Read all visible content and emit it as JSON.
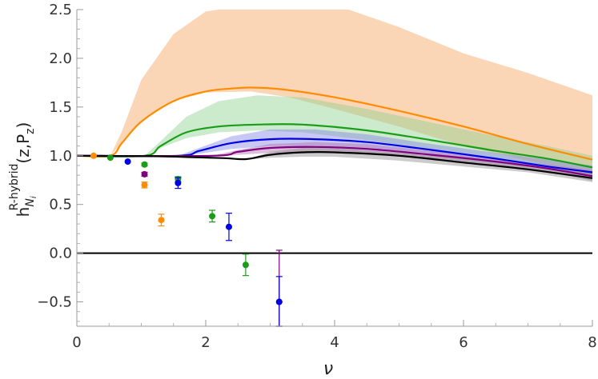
{
  "chart_data": {
    "type": "line",
    "title": "",
    "xlabel": "ν",
    "ylabel": {
      "base": "h",
      "superscript": "R-hybrid",
      "subscript_main": "N",
      "subscript_sub": "i",
      "args": "(z,P",
      "args_sub": "z",
      "args_close": ")"
    },
    "xlim": [
      0,
      8
    ],
    "ylim": [
      -0.75,
      2.5
    ],
    "x_ticks": [
      0,
      2,
      4,
      6,
      8
    ],
    "x_tick_labels": [
      "0",
      "2",
      "4",
      "6",
      "8"
    ],
    "y_ticks": [
      -0.5,
      0.0,
      0.5,
      1.0,
      1.5,
      2.0,
      2.5
    ],
    "y_tick_labels": [
      "-0.5",
      "0.0",
      "0.5",
      "1.0",
      "1.5",
      "2.0",
      "2.5"
    ],
    "grid": false,
    "reference_line_y": 0,
    "bands": [
      {
        "color": "#f4a460",
        "points": [
          {
            "x": 0.52,
            "lo": 1.0,
            "hi": 1.0
          },
          {
            "x": 0.7,
            "lo": 1.13,
            "hi": 1.25
          },
          {
            "x": 1.0,
            "lo": 1.35,
            "hi": 1.78
          },
          {
            "x": 1.5,
            "lo": 1.56,
            "hi": 2.25
          },
          {
            "x": 2.0,
            "lo": 1.65,
            "hi": 2.48
          },
          {
            "x": 2.7,
            "lo": 1.66,
            "hi": 2.55
          },
          {
            "x": 3.3,
            "lo": 1.6,
            "hi": 2.55
          },
          {
            "x": 4.0,
            "lo": 1.48,
            "hi": 2.55
          },
          {
            "x": 5.0,
            "lo": 1.3,
            "hi": 2.32
          },
          {
            "x": 6.0,
            "lo": 1.1,
            "hi": 2.05
          },
          {
            "x": 7.0,
            "lo": 0.95,
            "hi": 1.85
          },
          {
            "x": 8.0,
            "lo": 0.8,
            "hi": 1.62
          }
        ]
      },
      {
        "color": "#8fd18f",
        "points": [
          {
            "x": 1.05,
            "lo": 1.0,
            "hi": 1.0
          },
          {
            "x": 1.3,
            "lo": 1.08,
            "hi": 1.15
          },
          {
            "x": 1.7,
            "lo": 1.18,
            "hi": 1.4
          },
          {
            "x": 2.2,
            "lo": 1.24,
            "hi": 1.56
          },
          {
            "x": 2.8,
            "lo": 1.26,
            "hi": 1.62
          },
          {
            "x": 3.5,
            "lo": 1.24,
            "hi": 1.6
          },
          {
            "x": 4.5,
            "lo": 1.16,
            "hi": 1.48
          },
          {
            "x": 5.5,
            "lo": 1.06,
            "hi": 1.34
          },
          {
            "x": 6.5,
            "lo": 0.96,
            "hi": 1.2
          },
          {
            "x": 7.3,
            "lo": 0.9,
            "hi": 1.1
          },
          {
            "x": 8.0,
            "lo": 0.82,
            "hi": 1.0
          }
        ]
      },
      {
        "color": "#8585e6",
        "points": [
          {
            "x": 1.57,
            "lo": 1.0,
            "hi": 1.0
          },
          {
            "x": 1.9,
            "lo": 1.02,
            "hi": 1.08
          },
          {
            "x": 2.4,
            "lo": 1.07,
            "hi": 1.2
          },
          {
            "x": 3.0,
            "lo": 1.1,
            "hi": 1.27
          },
          {
            "x": 3.7,
            "lo": 1.1,
            "hi": 1.27
          },
          {
            "x": 4.5,
            "lo": 1.07,
            "hi": 1.22
          },
          {
            "x": 5.5,
            "lo": 1.0,
            "hi": 1.12
          },
          {
            "x": 6.5,
            "lo": 0.93,
            "hi": 1.03
          },
          {
            "x": 7.3,
            "lo": 0.87,
            "hi": 0.96
          },
          {
            "x": 8.0,
            "lo": 0.78,
            "hi": 0.9
          }
        ]
      },
      {
        "color": "#b070b0",
        "points": [
          {
            "x": 2.1,
            "lo": 1.0,
            "hi": 1.0
          },
          {
            "x": 2.5,
            "lo": 1.01,
            "hi": 1.06
          },
          {
            "x": 3.0,
            "lo": 1.03,
            "hi": 1.12
          },
          {
            "x": 3.7,
            "lo": 1.04,
            "hi": 1.14
          },
          {
            "x": 4.5,
            "lo": 1.02,
            "hi": 1.12
          },
          {
            "x": 5.5,
            "lo": 0.96,
            "hi": 1.05
          },
          {
            "x": 6.5,
            "lo": 0.9,
            "hi": 0.97
          },
          {
            "x": 7.3,
            "lo": 0.84,
            "hi": 0.91
          },
          {
            "x": 8.0,
            "lo": 0.74,
            "hi": 0.85
          }
        ]
      },
      {
        "color": "#8c8c8c",
        "points": [
          {
            "x": 2.63,
            "lo": 0.96,
            "hi": 0.96
          },
          {
            "x": 3.0,
            "lo": 0.98,
            "hi": 1.04
          },
          {
            "x": 3.5,
            "lo": 0.99,
            "hi": 1.08
          },
          {
            "x": 4.0,
            "lo": 0.99,
            "hi": 1.08
          },
          {
            "x": 5.0,
            "lo": 0.95,
            "hi": 1.03
          },
          {
            "x": 6.0,
            "lo": 0.89,
            "hi": 0.97
          },
          {
            "x": 7.0,
            "lo": 0.83,
            "hi": 0.9
          },
          {
            "x": 8.0,
            "lo": 0.73,
            "hi": 0.82
          }
        ]
      }
    ],
    "series": [
      {
        "color": "#ff8c00",
        "x": [
          0,
          0.52,
          0.7,
          1.0,
          1.5,
          2.0,
          2.4,
          2.7,
          3.2,
          4.0,
          5.0,
          6.0,
          7.0,
          8.0
        ],
        "y": [
          1.0,
          1.0,
          1.13,
          1.35,
          1.56,
          1.66,
          1.69,
          1.7,
          1.68,
          1.6,
          1.46,
          1.3,
          1.12,
          0.96
        ]
      },
      {
        "color": "#1a9e1a",
        "x": [
          0,
          1.05,
          1.3,
          1.7,
          2.2,
          2.8,
          3.5,
          4.5,
          5.5,
          6.5,
          7.3,
          8.0
        ],
        "y": [
          1.0,
          1.0,
          1.1,
          1.24,
          1.3,
          1.32,
          1.32,
          1.26,
          1.16,
          1.05,
          0.97,
          0.88
        ]
      },
      {
        "color": "#0000e6",
        "x": [
          0,
          1.57,
          1.9,
          2.4,
          3.0,
          3.7,
          4.5,
          5.5,
          6.5,
          7.3,
          8.0
        ],
        "y": [
          1.0,
          1.0,
          1.05,
          1.13,
          1.17,
          1.17,
          1.14,
          1.06,
          0.97,
          0.89,
          0.83
        ]
      },
      {
        "color": "#800080",
        "x": [
          0,
          2.1,
          2.5,
          3.0,
          3.7,
          4.5,
          5.5,
          6.5,
          7.3,
          8.0
        ],
        "y": [
          1.0,
          1.0,
          1.04,
          1.08,
          1.09,
          1.07,
          1.01,
          0.94,
          0.87,
          0.79
        ]
      },
      {
        "color": "#000000",
        "x": [
          0,
          1.2,
          1.8,
          2.3,
          2.63,
          3.0,
          3.5,
          4.0,
          5.0,
          6.0,
          7.0,
          8.0
        ],
        "y": [
          1.0,
          0.995,
          0.985,
          0.975,
          0.965,
          1.01,
          1.035,
          1.035,
          1.0,
          0.93,
          0.86,
          0.77
        ]
      }
    ],
    "points": [
      {
        "x": 0.26,
        "y": 1.0,
        "err": 0.01,
        "color": "#ff8c00"
      },
      {
        "x": 0.52,
        "y": 0.98,
        "err": 0.01,
        "color": "#1a9e1a"
      },
      {
        "x": 0.79,
        "y": 0.94,
        "err": 0.01,
        "color": "#0000e6"
      },
      {
        "x": 1.05,
        "y": 0.91,
        "err": 0.015,
        "color": "#1a9e1a"
      },
      {
        "x": 1.05,
        "y": 0.81,
        "err": 0.02,
        "color": "#800080"
      },
      {
        "x": 1.05,
        "y": 0.7,
        "err": 0.03,
        "color": "#ff8c00"
      },
      {
        "x": 1.31,
        "y": 0.34,
        "err": 0.06,
        "color": "#ff8c00"
      },
      {
        "x": 1.57,
        "y": 0.76,
        "err": 0.025,
        "color": "#1a9e1a"
      },
      {
        "x": 1.57,
        "y": 0.72,
        "err": 0.055,
        "color": "#0000e6"
      },
      {
        "x": 2.1,
        "y": 0.38,
        "err": 0.06,
        "color": "#1a9e1a"
      },
      {
        "x": 2.36,
        "y": 0.27,
        "err": 0.14,
        "color": "#0000e6"
      },
      {
        "x": 2.62,
        "y": -0.12,
        "err": 0.11,
        "color": "#1a9e1a"
      },
      {
        "x": 3.14,
        "y": -0.5,
        "err": 0.53,
        "color": "#800080"
      },
      {
        "x": 3.14,
        "y": -0.5,
        "err": 0.26,
        "color": "#0000e6"
      }
    ]
  }
}
